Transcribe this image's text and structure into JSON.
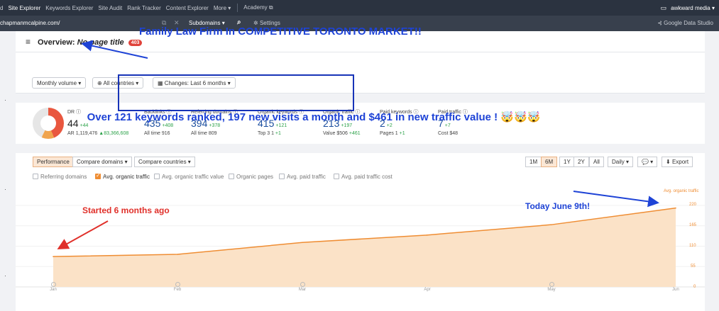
{
  "topnav": {
    "items": [
      "d",
      "Site Explorer",
      "Keywords Explorer",
      "Site Audit",
      "Rank Tracker",
      "Content Explorer",
      "More ▾"
    ],
    "academy": "Academy ⧉",
    "account": "awkward media ▾"
  },
  "urlbar": {
    "url": "chapmanmcalpine.com/",
    "mode": "Subdomains ▾",
    "settings": "Settings",
    "gds": "Google Data Studio"
  },
  "overview": {
    "title_prefix": "Overview:",
    "title_value": "No page title",
    "badge": "403"
  },
  "annotations": {
    "headline": "Family Law Firm In COMPETITIVE TORONTO MARKET!!",
    "summary": "Over 121 keywords ranked, 197 new visits a month and $461 in new traffic value ! 🤯🤯🤯",
    "started": "Started 6 months ago",
    "today": "Today June 9th!"
  },
  "filters": [
    "Monthly volume ▾",
    "All countries ▾",
    "Changes: Last 6 months ▾"
  ],
  "metrics": {
    "dr": {
      "label": "DR ⓘ",
      "value": "44",
      "delta": "+44",
      "sub_label": "AR",
      "sub_value": "1,119,476",
      "sub_delta": "▲83,366,608"
    },
    "backlinks": {
      "label": "Backlinks ⓘ",
      "value": "435",
      "delta": "+408",
      "sub": "All time 916"
    },
    "refdomains": {
      "label": "Referring domains ⓘ",
      "value": "394",
      "delta": "+378",
      "sub": "All time 809"
    },
    "orgkw": {
      "label": "Organic keywords ⓘ",
      "value": "415",
      "delta": "+121",
      "sub": "Top 3 1",
      "sub_delta": "+1"
    },
    "orgtraffic": {
      "label": "Organic traffic ⓘ",
      "value": "213",
      "delta": "+197",
      "sub": "Value $506",
      "sub_delta": "+461"
    },
    "paidkw": {
      "label": "Paid keywords ⓘ",
      "value": "2",
      "delta": "+2",
      "sub": "Pages 1",
      "sub_delta": "+1"
    },
    "paidtraffic": {
      "label": "Paid traffic ⓘ",
      "value": "7",
      "delta": "+7",
      "sub": "Cost $48"
    }
  },
  "perf": {
    "tabs": [
      "Performance",
      "Compare domains ▾",
      "Compare countries ▾"
    ],
    "ranges": [
      "1M",
      "6M",
      "1Y",
      "2Y",
      "All"
    ],
    "active_range": "6M",
    "interval": "Daily ▾",
    "comment": "💬 ▾",
    "export": "Export"
  },
  "checks": [
    {
      "label": "Referring domains",
      "checked": false
    },
    {
      "label": "Avg. organic traffic",
      "checked": true
    },
    {
      "label": "Avg. organic traffic value",
      "checked": false
    },
    {
      "label": "Organic pages",
      "checked": false
    },
    {
      "label": "Avg. paid traffic",
      "checked": false
    },
    {
      "label": "Avg. paid traffic cost",
      "checked": false
    }
  ],
  "chart_data": {
    "type": "area",
    "series": [
      {
        "name": "Avg. organic traffic",
        "values": [
          82,
          88,
          120,
          140,
          168,
          213
        ]
      }
    ],
    "x": [
      "Jan",
      "Feb",
      "Mar",
      "Apr",
      "May",
      "Jun"
    ],
    "ylim": [
      0,
      220
    ],
    "yticks": [
      "220",
      "165",
      "110",
      "55",
      "0"
    ],
    "color": "#ef8d33"
  }
}
